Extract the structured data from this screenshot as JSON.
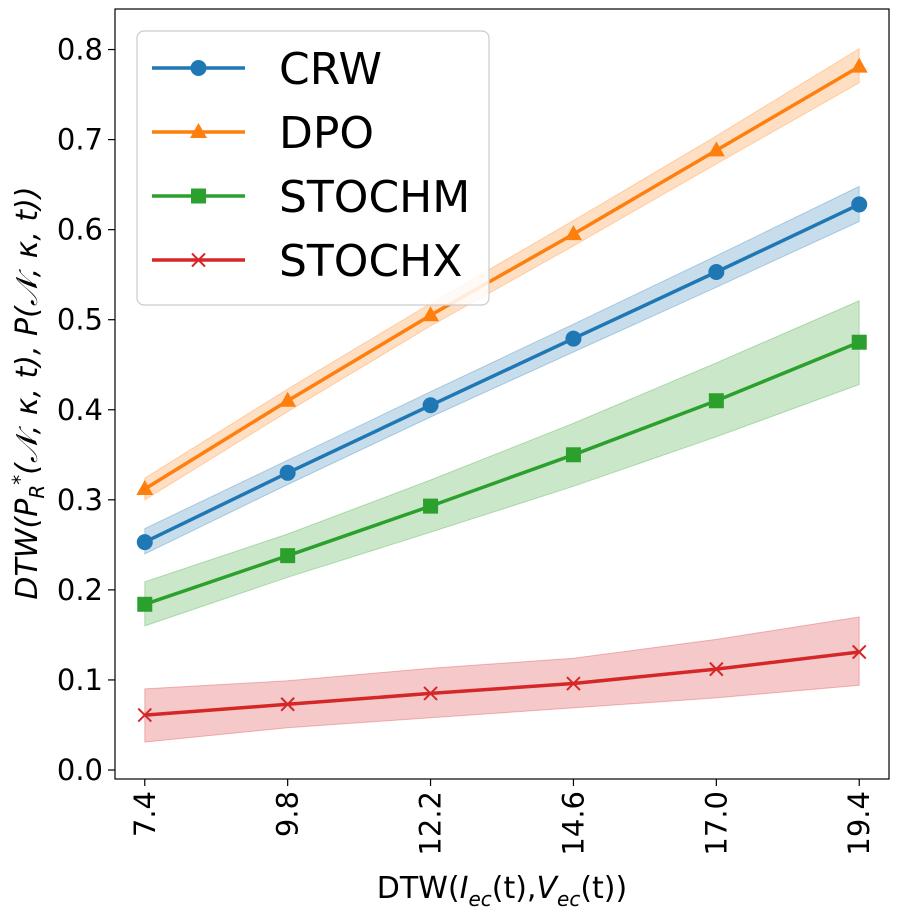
{
  "chart_data": {
    "type": "line",
    "x": [
      7.4,
      9.8,
      12.2,
      14.6,
      17.0,
      19.4
    ],
    "x_tick_labels": [
      "7.4",
      "9.8",
      "12.2",
      "14.6",
      "17.0",
      "19.4"
    ],
    "xlim": [
      6.9,
      19.9
    ],
    "ylim": [
      -0.01,
      0.845
    ],
    "y_ticks": [
      0.0,
      0.1,
      0.2,
      0.3,
      0.4,
      0.5,
      0.6,
      0.7,
      0.8
    ],
    "y_tick_labels": [
      "0.0",
      "0.1",
      "0.2",
      "0.3",
      "0.4",
      "0.5",
      "0.6",
      "0.7",
      "0.8"
    ],
    "xlabel_parts": {
      "prefix": "DTW(",
      "i_base": "I",
      "i_sub": "ec",
      "t1": "(t),",
      "v_base": "V",
      "v_sub": "ec",
      "t2": "(t))"
    },
    "ylabel_parts": {
      "p1": "DTW(P",
      "sub1": "R",
      "sup1": "*",
      "rest": "(𝒩, κ, t), P(𝒩, κ, t))"
    },
    "grid": false,
    "legend_position": "top-left",
    "series": [
      {
        "name": "CRW",
        "color": "#1f77b4",
        "marker": "circle",
        "values": [
          0.253,
          0.33,
          0.405,
          0.479,
          0.553,
          0.628
        ],
        "lower": [
          0.24,
          0.317,
          0.392,
          0.464,
          0.536,
          0.609
        ],
        "upper": [
          0.268,
          0.344,
          0.42,
          0.495,
          0.571,
          0.648
        ]
      },
      {
        "name": "DPO",
        "color": "#ff7f0e",
        "marker": "triangle",
        "values": [
          0.312,
          0.41,
          0.505,
          0.595,
          0.688,
          0.781
        ],
        "lower": [
          0.3,
          0.398,
          0.493,
          0.582,
          0.673,
          0.763
        ],
        "upper": [
          0.324,
          0.423,
          0.518,
          0.61,
          0.704,
          0.801
        ]
      },
      {
        "name": "STOCHM",
        "color": "#2ca02c",
        "marker": "square",
        "values": [
          0.184,
          0.238,
          0.293,
          0.35,
          0.41,
          0.475
        ],
        "lower": [
          0.16,
          0.214,
          0.264,
          0.315,
          0.37,
          0.428
        ],
        "upper": [
          0.209,
          0.262,
          0.322,
          0.385,
          0.452,
          0.521
        ]
      },
      {
        "name": "STOCHX",
        "color": "#d62728",
        "marker": "x",
        "values": [
          0.061,
          0.073,
          0.085,
          0.096,
          0.112,
          0.131
        ],
        "lower": [
          0.031,
          0.047,
          0.058,
          0.069,
          0.08,
          0.094
        ],
        "upper": [
          0.09,
          0.099,
          0.113,
          0.124,
          0.145,
          0.17
        ]
      }
    ]
  }
}
